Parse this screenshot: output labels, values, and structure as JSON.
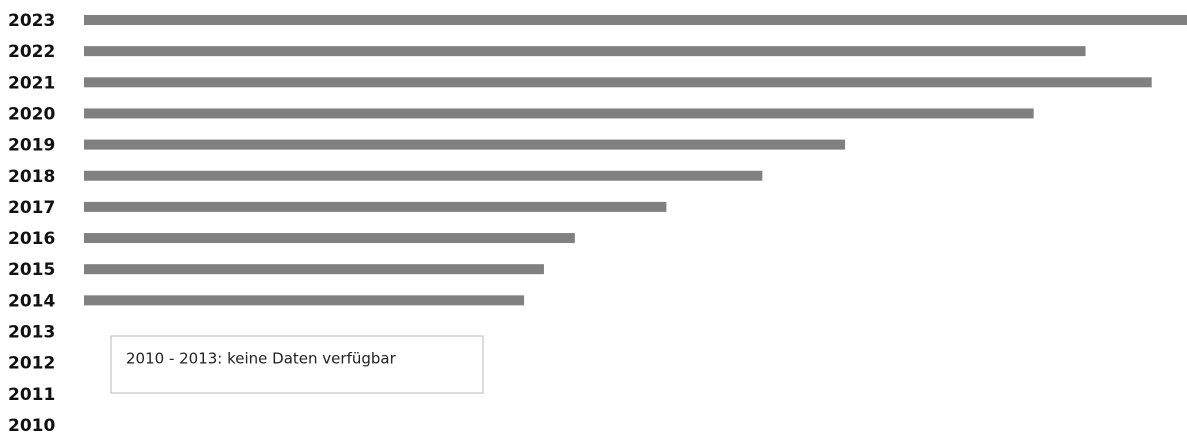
{
  "chart_data": {
    "type": "bar",
    "orientation": "horizontal",
    "categories": [
      "2023",
      "2022",
      "2021",
      "2020",
      "2019",
      "2018",
      "2017",
      "2016",
      "2015",
      "2014",
      "2013",
      "2012",
      "2011",
      "2010"
    ],
    "values": [
      100,
      90.8,
      96.8,
      86.1,
      69.0,
      61.5,
      52.8,
      44.5,
      41.7,
      39.9,
      null,
      null,
      null,
      null
    ],
    "color": "#808080",
    "xlim": [
      0,
      100
    ],
    "annotation": "2010 - 2013: keine Daten verfügbar"
  }
}
